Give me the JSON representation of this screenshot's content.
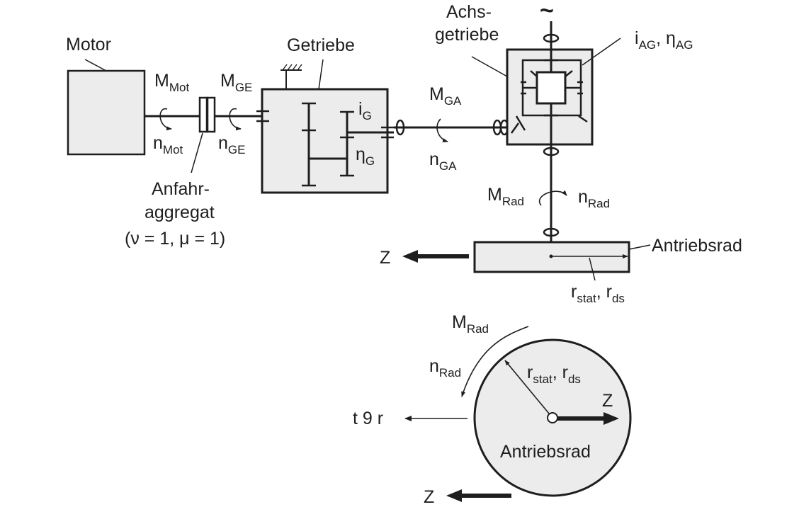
{
  "labels": {
    "motor": "Motor",
    "getriebe": "Getriebe",
    "achs_1": "Achs-",
    "achs_2": "getriebe",
    "anfahr_1": "Anfahr-",
    "anfahr_2": "aggregat",
    "anfahr_3": "(ν = 1, μ = 1)",
    "antriebsrad_side": "Antriebsrad",
    "antriebsrad_wheel": "Antriebsrad",
    "tilde": "~",
    "force_left": "t 9 r",
    "z_side": "Z",
    "z_wheel_right": "Z",
    "z_wheel_bottom": "Z"
  },
  "symbols": {
    "m_mot": {
      "base": "M",
      "sub": "Mot"
    },
    "n_mot": {
      "base": "n",
      "sub": "Mot"
    },
    "m_ge": {
      "base": "M",
      "sub": "GE"
    },
    "n_ge": {
      "base": "n",
      "sub": "GE"
    },
    "i_g": {
      "base": "i",
      "sub": "G"
    },
    "eta_g": {
      "base": "η",
      "sub": "G"
    },
    "m_ga": {
      "base": "M",
      "sub": "GA"
    },
    "n_ga": {
      "base": "n",
      "sub": "GA"
    },
    "i_ag": {
      "base": "i",
      "sub": "AG"
    },
    "sep_ag": ", ",
    "eta_ag": {
      "base": "η",
      "sub": "AG"
    },
    "m_rad": {
      "base": "M",
      "sub": "Rad"
    },
    "n_rad": {
      "base": "n",
      "sub": "Rad"
    },
    "r_stat_side": {
      "base": "r",
      "sub": "stat"
    },
    "sep_side": ", ",
    "r_ds_side": {
      "base": "r",
      "sub": "ds"
    },
    "m_rad_wheel": {
      "base": "M",
      "sub": "Rad"
    },
    "n_rad_wheel": {
      "base": "n",
      "sub": "Rad"
    },
    "r_stat_wheel": {
      "base": "r",
      "sub": "stat"
    },
    "sep_wheel": ", ",
    "r_ds_wheel": {
      "base": "r",
      "sub": "ds"
    }
  },
  "colors": {
    "line": "#1e1e1e",
    "fill": "#ececec",
    "background": "#ffffff"
  }
}
